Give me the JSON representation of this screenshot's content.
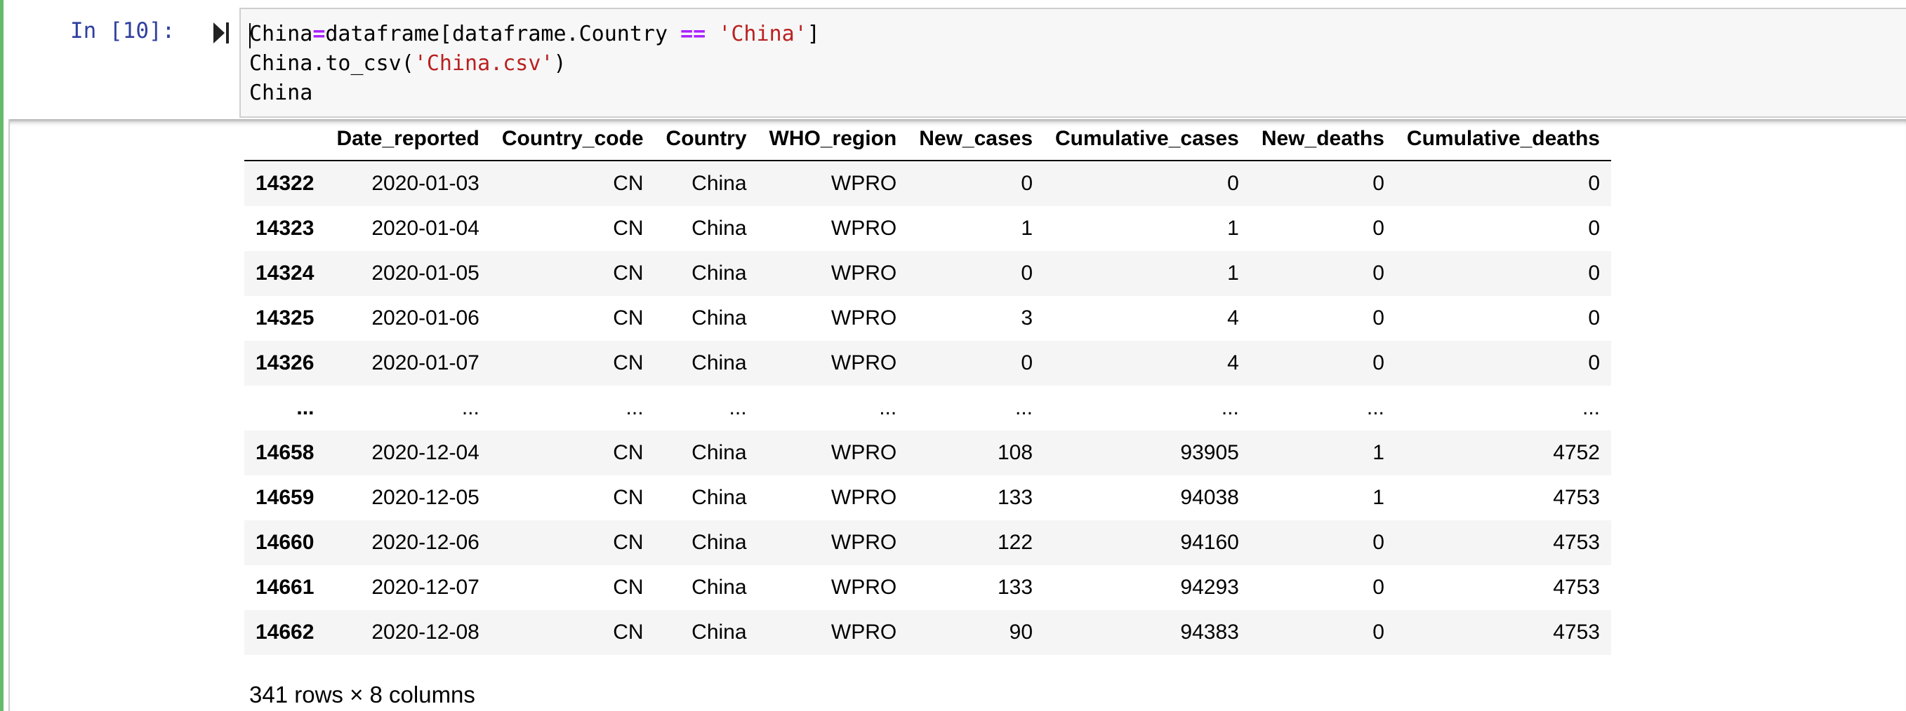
{
  "cell": {
    "prompt": "In [10]:",
    "code": {
      "line1": {
        "a": "China",
        "op1": "=",
        "b": "dataframe[dataframe.Country ",
        "op2": "==",
        "c": " ",
        "str": "'China'",
        "d": "]"
      },
      "line2": {
        "a": "China.to_csv(",
        "str": "'China.csv'",
        "b": ")"
      },
      "line3": "China"
    }
  },
  "table": {
    "columns": [
      "",
      "Date_reported",
      "Country_code",
      "Country",
      "WHO_region",
      "New_cases",
      "Cumulative_cases",
      "New_deaths",
      "Cumulative_deaths"
    ],
    "rows": [
      [
        "14322",
        "2020-01-03",
        "CN",
        "China",
        "WPRO",
        "0",
        "0",
        "0",
        "0"
      ],
      [
        "14323",
        "2020-01-04",
        "CN",
        "China",
        "WPRO",
        "1",
        "1",
        "0",
        "0"
      ],
      [
        "14324",
        "2020-01-05",
        "CN",
        "China",
        "WPRO",
        "0",
        "1",
        "0",
        "0"
      ],
      [
        "14325",
        "2020-01-06",
        "CN",
        "China",
        "WPRO",
        "3",
        "4",
        "0",
        "0"
      ],
      [
        "14326",
        "2020-01-07",
        "CN",
        "China",
        "WPRO",
        "0",
        "4",
        "0",
        "0"
      ],
      [
        "...",
        "...",
        "...",
        "...",
        "...",
        "...",
        "...",
        "...",
        "..."
      ],
      [
        "14658",
        "2020-12-04",
        "CN",
        "China",
        "WPRO",
        "108",
        "93905",
        "1",
        "4752"
      ],
      [
        "14659",
        "2020-12-05",
        "CN",
        "China",
        "WPRO",
        "133",
        "94038",
        "1",
        "4753"
      ],
      [
        "14660",
        "2020-12-06",
        "CN",
        "China",
        "WPRO",
        "122",
        "94160",
        "0",
        "4753"
      ],
      [
        "14661",
        "2020-12-07",
        "CN",
        "China",
        "WPRO",
        "133",
        "94293",
        "0",
        "4753"
      ],
      [
        "14662",
        "2020-12-08",
        "CN",
        "China",
        "WPRO",
        "90",
        "94383",
        "0",
        "4753"
      ]
    ],
    "shape_note": "341 rows × 8 columns"
  },
  "colors": {
    "cell_border": "#66bb6a",
    "prompt": "#303f9f",
    "operator": "#aa22ff",
    "string": "#ba2121"
  },
  "icons": {
    "run": "run-cell-icon"
  }
}
